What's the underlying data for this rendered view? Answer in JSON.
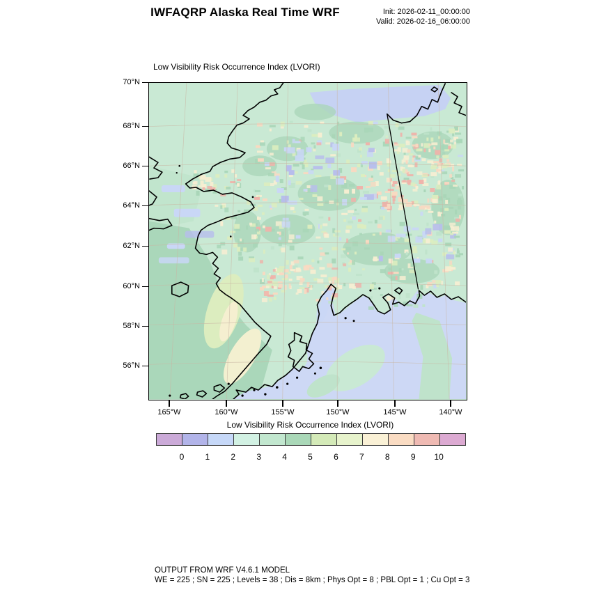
{
  "header": {
    "title": "IWFAQRP Alaska Real Time WRF",
    "init_label": "Init: 2026-02-11_00:00:00",
    "valid_label": "Valid: 2026-02-16_06:00:00"
  },
  "map": {
    "subtitle": "Low Visibility Risk Occurrence Index   (LVORI)",
    "lat_tick_labels": [
      "70°N",
      "68°N",
      "66°N",
      "64°N",
      "62°N",
      "60°N",
      "58°N",
      "56°N"
    ],
    "lon_tick_labels": [
      "165°W",
      "160°W",
      "155°W",
      "150°W",
      "145°W",
      "140°W"
    ]
  },
  "colorbar": {
    "title": "Low Visibility Risk Occurrence Index  (LVORI)",
    "tick_labels": [
      "0",
      "1",
      "2",
      "3",
      "4",
      "5",
      "6",
      "7",
      "8",
      "9",
      "10"
    ],
    "segment_colors": [
      "#cbaad8",
      "#b2b4e9",
      "#c6d8f8",
      "#d2f1e3",
      "#c2e7cf",
      "#aad8b8",
      "#d4eab8",
      "#e7f3cc",
      "#faf1d6",
      "#fadcc3",
      "#efbab3",
      "#dcaad2"
    ]
  },
  "map_palette": {
    "background_mint": "#c9e9d4",
    "mint2": "#bfe3cb",
    "medium_green": "#a9d6b8",
    "pale_yellow_green": "#dcedbf",
    "cream": "#f7eed2",
    "cream_streak": "#f3f0d0",
    "peach": "#f9d9c1",
    "salmon": "#efb3aa",
    "light_blue": "#c9d7f6",
    "periwinkle": "#b7bdec",
    "gulf_blue": "#cdd8f5",
    "beaufort_blue": "#c6d2f3",
    "coastline": "#000000",
    "graticule": "#c9b6a4"
  },
  "footer": {
    "line1": "OUTPUT FROM WRF V4.6.1 MODEL",
    "line2": "WE = 225 ; SN = 225 ; Levels = 38 ; Dis = 8km ; Phys Opt = 8 ; PBL Opt = 1 ; Cu Opt = 3"
  }
}
